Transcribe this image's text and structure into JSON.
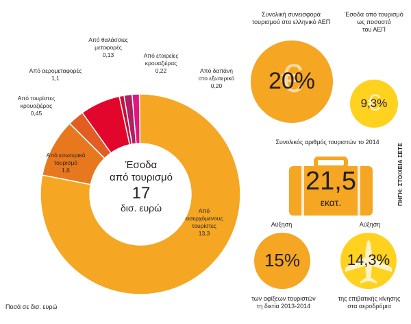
{
  "chart_data": {
    "type": "pie",
    "variant": "donut",
    "center": {
      "title_lines": [
        "Έσοδα",
        "από τουρισμό"
      ],
      "total": "17",
      "unit": "δισ. ευρώ"
    },
    "slices": [
      {
        "label_lines": [
          "Από",
          "εισερχόμενους",
          "τουρίστες"
        ],
        "value": 13.3,
        "value_label": "13,3",
        "color": "#f5a623"
      },
      {
        "label_lines": [
          "Από εσωτερικό",
          "τουρισμό"
        ],
        "value": 1.6,
        "value_label": "1,6",
        "color": "#e8781e"
      },
      {
        "label_lines": [
          "Από τουρίστες",
          "κρουαζιέρας"
        ],
        "value": 0.45,
        "value_label": "0,45",
        "color": "#e35d23"
      },
      {
        "label_lines": [
          "Από αερομεταφορές"
        ],
        "value": 1.1,
        "value_label": "1,1",
        "color": "#e2062c"
      },
      {
        "label_lines": [
          "Από θαλάσσιες",
          "μεταφορές"
        ],
        "value": 0.13,
        "value_label": "0,13",
        "color": "#c4133a"
      },
      {
        "label_lines": [
          "Από εταιρείες",
          "κρουαζιέρας"
        ],
        "value": 0.22,
        "value_label": "0,22",
        "color": "#b01e64"
      },
      {
        "label_lines": [
          "Από δαπάνη",
          "στο εξωτερικό"
        ],
        "value": 0.2,
        "value_label": "0,20",
        "color": "#e0177f"
      }
    ],
    "note": "Ποσά σε δισ. ευρώ"
  },
  "stats": {
    "contribution": {
      "title_lines": [
        "Συνολική συνεισφορά",
        "τουρισμού στο ελληνικό ΑΕΠ"
      ],
      "value": "20%",
      "color": "#f5a623",
      "icon": "euro-icon"
    },
    "revenue_gdp": {
      "title_lines": [
        "Έσοδα από τουρισμό",
        "ως ποσοστό",
        "του ΑΕΠ"
      ],
      "value": "9,3%",
      "color": "#ffd21f",
      "icon": "euro-icon"
    },
    "tourists": {
      "title": "Συνολικός αριθμός τουριστών το 2014",
      "value": "21,5",
      "unit": "εκατ.",
      "color": "#f5a623",
      "icon": "suitcase-icon"
    },
    "arrivals": {
      "heading": "Αύξηση",
      "value": "15%",
      "caption_lines": [
        "των αφίξεων τουριστών",
        "τη διετία 2013-2014"
      ],
      "color": "#f5a623"
    },
    "air_traffic": {
      "heading": "Αύξηση",
      "value": "14,3%",
      "caption_lines": [
        "της επιβατικής κίνησης",
        "στα αεροδρόμια"
      ],
      "color": "#ffd21f",
      "icon": "airplane-icon"
    }
  },
  "source": "ΠΗΓΗ: ΣΤΟΙΧΕΙΑ ΣΕΤΕ"
}
